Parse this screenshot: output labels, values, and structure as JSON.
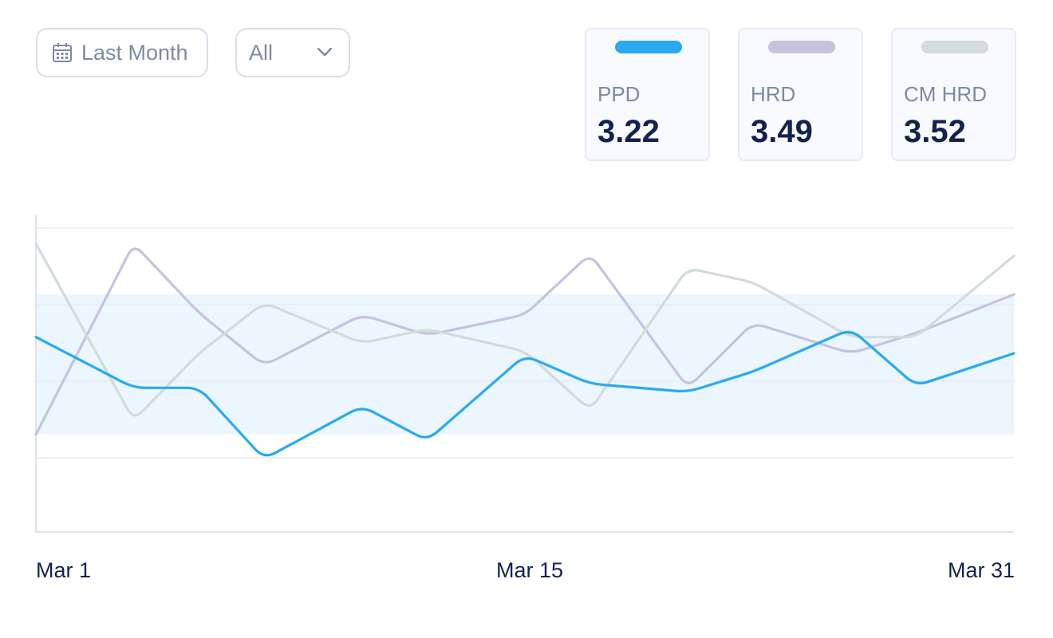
{
  "filters": {
    "date_range": {
      "label": "Last Month",
      "icon": "calendar-icon"
    },
    "category": {
      "selected": "All",
      "icon": "chevron-down-icon"
    }
  },
  "legend_cards": [
    {
      "name": "PPD",
      "value": "3.22",
      "color": "#2aa9f3"
    },
    {
      "name": "HRD",
      "value": "3.49",
      "color": "#c7c2dd"
    },
    {
      "name": "CM HRD",
      "value": "3.52",
      "color": "#d2dcd8"
    }
  ],
  "chart_data": {
    "type": "line",
    "x_tick_labels": [
      "Mar 1",
      "Mar 15",
      "Mar 31"
    ],
    "x": [
      1,
      4,
      6,
      8,
      11,
      13,
      16,
      18,
      21,
      23,
      26,
      28,
      31
    ],
    "xlim": [
      1,
      31
    ],
    "ylim": [
      2.44,
      4.0
    ],
    "target_band": [
      2.92,
      3.61
    ],
    "grid": "horizontal",
    "series": [
      {
        "name": "HRD",
        "color": "#c7c2dd",
        "values": [
          2.92,
          3.86,
          3.52,
          3.26,
          3.51,
          3.41,
          3.51,
          3.81,
          3.15,
          3.47,
          3.32,
          3.42,
          3.61
        ]
      },
      {
        "name": "CM HRD",
        "color": "#d2dcd8",
        "values": [
          3.86,
          2.99,
          3.32,
          3.57,
          3.37,
          3.44,
          3.33,
          3.04,
          3.74,
          3.67,
          3.4,
          3.4,
          3.8
        ]
      },
      {
        "name": "PPD",
        "color": "#2aa9f3",
        "values": [
          3.4,
          3.15,
          3.15,
          2.8,
          3.06,
          2.89,
          3.31,
          3.17,
          3.13,
          3.23,
          3.44,
          3.16,
          3.32
        ]
      }
    ]
  }
}
